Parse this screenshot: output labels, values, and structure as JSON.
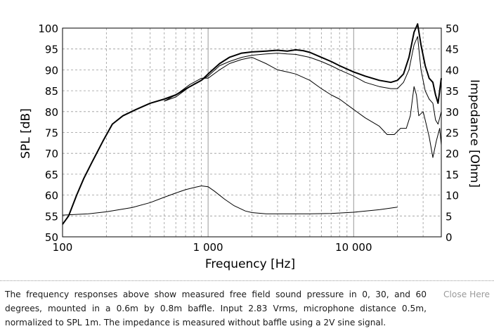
{
  "chart_data": {
    "type": "line",
    "xlabel": "Frequency [Hz]",
    "ylabel_left": "SPL [dB]",
    "ylabel_right": "Impedance [Ohm]",
    "x_scale": "log",
    "xlim": [
      100,
      40000
    ],
    "ylim_left": [
      50,
      100
    ],
    "ylim_right": [
      0,
      50
    ],
    "x_tick_labels": [
      {
        "value": 100,
        "label": "100"
      },
      {
        "value": 1000,
        "label": "1 000"
      },
      {
        "value": 10000,
        "label": "10 000"
      }
    ],
    "y_left_ticks": [
      100,
      95,
      90,
      85,
      80,
      75,
      70,
      65,
      60,
      55,
      50
    ],
    "y_right_ticks": [
      50,
      45,
      40,
      35,
      30,
      25,
      20,
      15,
      10,
      5,
      0
    ],
    "grid": true,
    "series": [
      {
        "axis": "left",
        "stroke_width": 2,
        "points": [
          [
            100,
            53
          ],
          [
            110,
            55
          ],
          [
            125,
            60
          ],
          [
            140,
            64
          ],
          [
            160,
            68
          ],
          [
            190,
            73
          ],
          [
            220,
            77
          ],
          [
            260,
            79
          ],
          [
            320,
            80.5
          ],
          [
            400,
            82
          ],
          [
            500,
            83
          ],
          [
            600,
            84
          ],
          [
            750,
            86
          ],
          [
            900,
            87.5
          ],
          [
            1000,
            89
          ],
          [
            1200,
            91.5
          ],
          [
            1400,
            93
          ],
          [
            1700,
            94
          ],
          [
            2000,
            94.3
          ],
          [
            2500,
            94.5
          ],
          [
            3000,
            94.7
          ],
          [
            3500,
            94.5
          ],
          [
            4000,
            94.8
          ],
          [
            4500,
            94.6
          ],
          [
            5000,
            94.2
          ],
          [
            6000,
            93
          ],
          [
            7000,
            92
          ],
          [
            8000,
            91
          ],
          [
            10000,
            89.5
          ],
          [
            12000,
            88.5
          ],
          [
            15000,
            87.5
          ],
          [
            18000,
            87
          ],
          [
            20000,
            87.5
          ],
          [
            22000,
            89
          ],
          [
            24000,
            93
          ],
          [
            26000,
            99
          ],
          [
            27500,
            101
          ],
          [
            29000,
            96
          ],
          [
            31000,
            91
          ],
          [
            33000,
            88
          ],
          [
            35000,
            87
          ],
          [
            36500,
            84
          ],
          [
            38000,
            82
          ],
          [
            40000,
            88
          ]
        ]
      },
      {
        "axis": "left",
        "stroke_width": 1,
        "points": [
          [
            500,
            82.5
          ],
          [
            600,
            83.5
          ],
          [
            750,
            86
          ],
          [
            900,
            87.5
          ],
          [
            1000,
            88.5
          ],
          [
            1200,
            91
          ],
          [
            1400,
            92
          ],
          [
            1700,
            93
          ],
          [
            2000,
            93.5
          ],
          [
            2500,
            93.8
          ],
          [
            3000,
            94
          ],
          [
            3500,
            93.8
          ],
          [
            4000,
            93.7
          ],
          [
            5000,
            93
          ],
          [
            6000,
            92
          ],
          [
            7000,
            91
          ],
          [
            8000,
            90
          ],
          [
            10000,
            88.5
          ],
          [
            12000,
            87
          ],
          [
            15000,
            86
          ],
          [
            18000,
            85.5
          ],
          [
            20000,
            85.5
          ],
          [
            22000,
            87
          ],
          [
            24000,
            90
          ],
          [
            26000,
            96
          ],
          [
            27500,
            98
          ],
          [
            29000,
            90
          ],
          [
            31000,
            85
          ],
          [
            33000,
            83
          ],
          [
            35000,
            82
          ],
          [
            36500,
            78
          ],
          [
            38000,
            77
          ],
          [
            40000,
            80
          ]
        ]
      },
      {
        "axis": "left",
        "stroke_width": 1,
        "points": [
          [
            500,
            82.5
          ],
          [
            600,
            84
          ],
          [
            750,
            86.5
          ],
          [
            900,
            88
          ],
          [
            1000,
            88
          ],
          [
            1200,
            90
          ],
          [
            1400,
            91.5
          ],
          [
            1700,
            92.5
          ],
          [
            2000,
            93
          ],
          [
            2500,
            91.5
          ],
          [
            3000,
            90
          ],
          [
            3500,
            89.5
          ],
          [
            4000,
            89
          ],
          [
            5000,
            87.5
          ],
          [
            6000,
            85.5
          ],
          [
            7000,
            84
          ],
          [
            8000,
            83
          ],
          [
            10000,
            80.5
          ],
          [
            12000,
            78.5
          ],
          [
            15000,
            76.5
          ],
          [
            17000,
            74.5
          ],
          [
            19000,
            74.5
          ],
          [
            21000,
            76
          ],
          [
            23000,
            76
          ],
          [
            24500,
            79
          ],
          [
            26000,
            86
          ],
          [
            27000,
            84
          ],
          [
            28000,
            79
          ],
          [
            30000,
            80
          ],
          [
            31000,
            78
          ],
          [
            33000,
            74
          ],
          [
            35000,
            69
          ],
          [
            37000,
            73
          ],
          [
            39000,
            76
          ],
          [
            40000,
            72
          ]
        ]
      },
      {
        "axis": "right",
        "stroke_width": 1,
        "points": [
          [
            100,
            5.2
          ],
          [
            150,
            5.5
          ],
          [
            200,
            6
          ],
          [
            300,
            7
          ],
          [
            400,
            8.2
          ],
          [
            500,
            9.5
          ],
          [
            600,
            10.5
          ],
          [
            700,
            11.3
          ],
          [
            800,
            11.8
          ],
          [
            900,
            12.2
          ],
          [
            1000,
            12
          ],
          [
            1100,
            11
          ],
          [
            1300,
            9
          ],
          [
            1500,
            7.5
          ],
          [
            1800,
            6.2
          ],
          [
            2000,
            5.8
          ],
          [
            2500,
            5.5
          ],
          [
            3000,
            5.5
          ],
          [
            5000,
            5.5
          ],
          [
            7000,
            5.6
          ],
          [
            10000,
            5.9
          ],
          [
            15000,
            6.5
          ],
          [
            20000,
            7.1
          ]
        ]
      }
    ]
  },
  "caption": {
    "text": "The frequency responses above show measured free field sound pressure in 0, 30, and 60 degrees, mounted in a 0.6m by 0.8m baffle. Input 2.83 Vrms, microphone distance 0.5m, normalized to SPL 1m. The impedance is measured without baffle using a 2V sine signal.",
    "close_label": "Close Here"
  }
}
